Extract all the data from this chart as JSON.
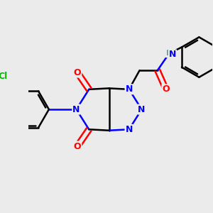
{
  "background_color": "#ebebeb",
  "atom_colors": {
    "C": "#000000",
    "N": "#0000ff",
    "O": "#ff0000",
    "Cl": "#00bb00",
    "H": "#5f9ea0"
  },
  "bond_width": 1.8,
  "figsize": [
    3.0,
    3.0
  ],
  "dpi": 100
}
